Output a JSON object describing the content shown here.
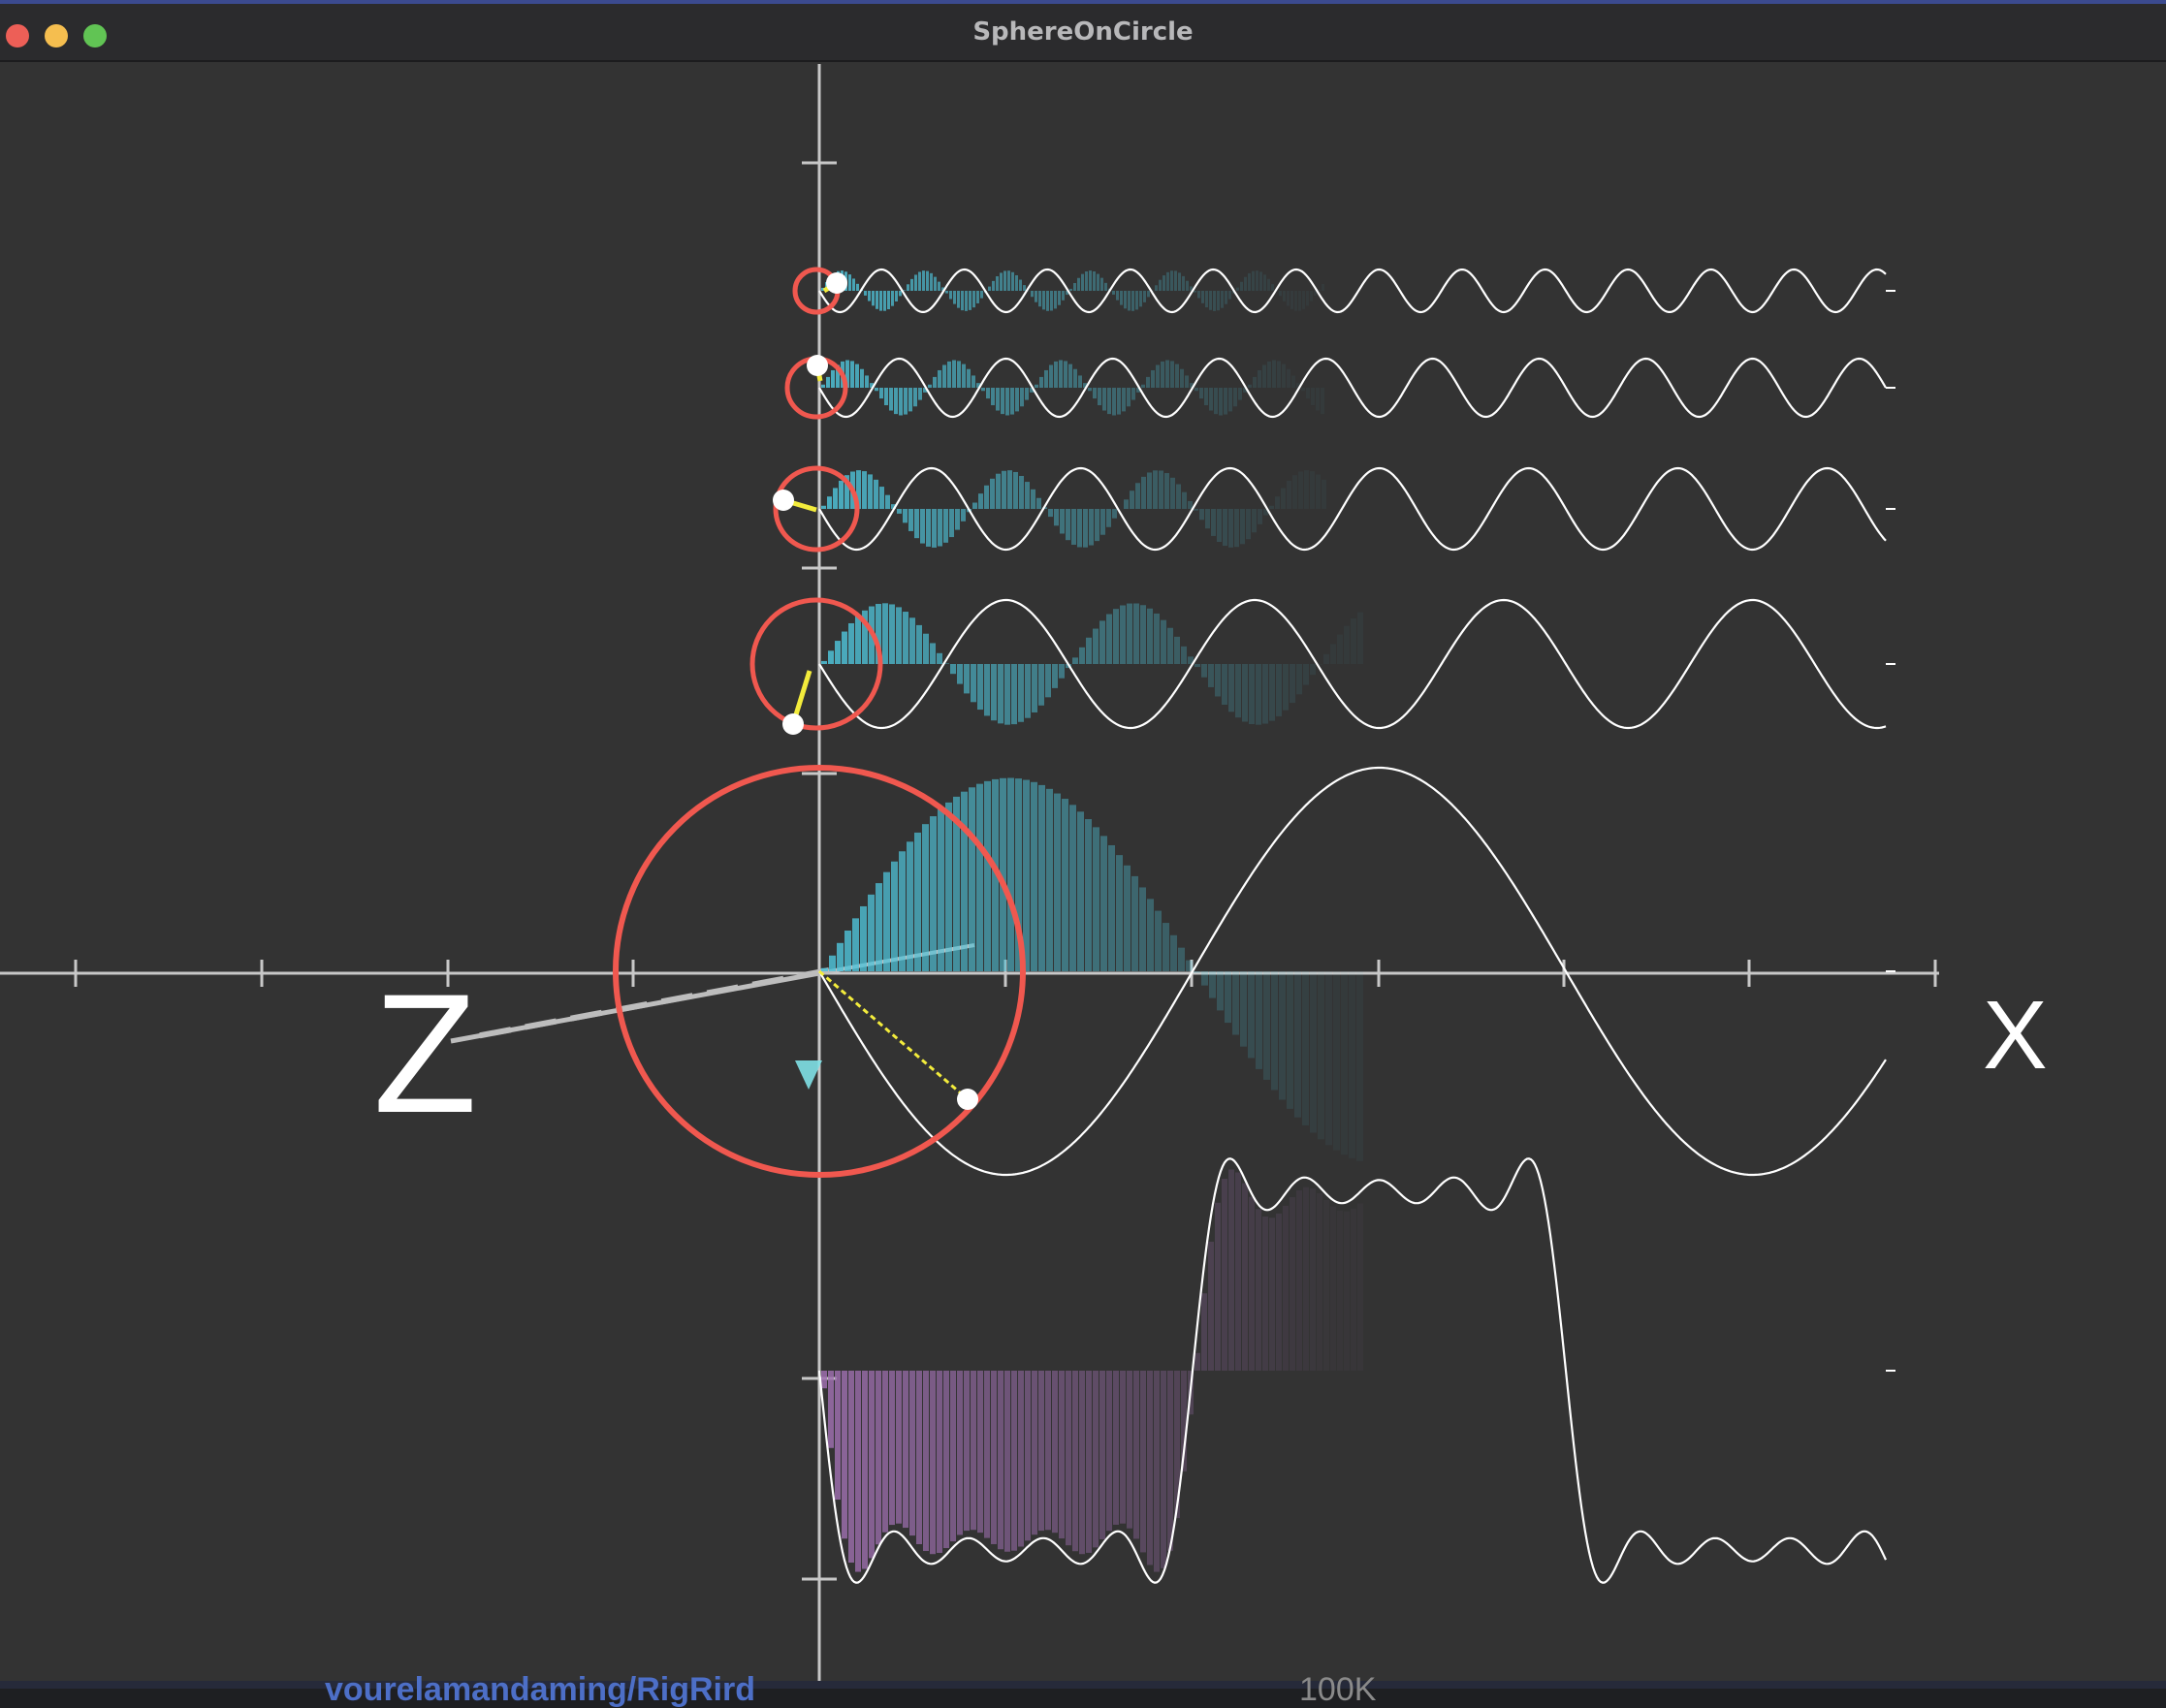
{
  "window": {
    "title": "SphereOnCircle",
    "background": "#333333"
  },
  "axes": {
    "x_label": "X",
    "z_label": "Z",
    "axis_color": "#c8c8c8"
  },
  "colors": {
    "circle": "#f0584f",
    "wave": "#ffffff",
    "bars_cyan": "#4fc3d9",
    "bars_purple": "#9d6fae",
    "radius_line": "#f3ec3c",
    "marker": "#ffffff"
  },
  "harmonics": [
    {
      "n": 1,
      "amplitude": 1.0
    },
    {
      "n": 3,
      "amplitude": 0.333
    },
    {
      "n": 5,
      "amplitude": 0.2
    },
    {
      "n": 7,
      "amplitude": 0.143
    },
    {
      "n": 9,
      "amplitude": 0.111
    }
  ],
  "square_wave": {
    "terms": 5
  },
  "background_window": {
    "partial_text_left": "vourelamandaming/RigRird",
    "partial_text_right": "100K"
  }
}
